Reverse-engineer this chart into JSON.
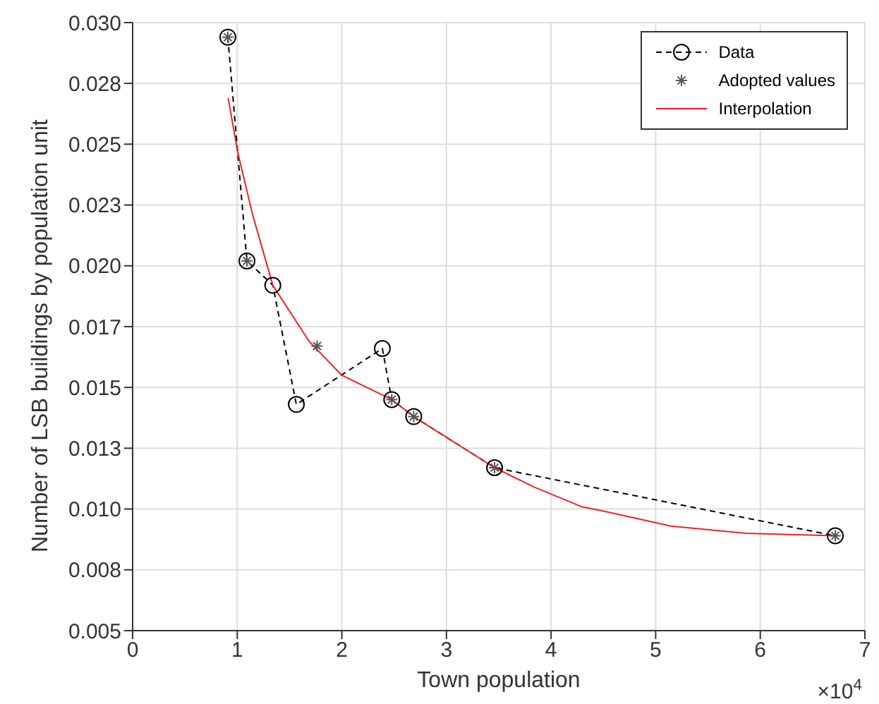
{
  "chart_data": {
    "type": "line",
    "xlabel": "Town population",
    "ylabel": "Number of LSB buildings by population unit",
    "annotations": [
      "×10$^{4}$"
    ],
    "xlim": [
      0,
      7
    ],
    "xticks": [
      0,
      1,
      2,
      3,
      4,
      5,
      6,
      7
    ],
    "ylim": [
      0.005,
      0.03
    ],
    "yticks": [
      {
        "value": 0.005,
        "label": "0.005"
      },
      {
        "value": 0.0075,
        "label": "0.008"
      },
      {
        "value": 0.01,
        "label": "0.010"
      },
      {
        "value": 0.0125,
        "label": "0.013"
      },
      {
        "value": 0.015,
        "label": "0.015"
      },
      {
        "value": 0.0175,
        "label": "0.017"
      },
      {
        "value": 0.02,
        "label": "0.020"
      },
      {
        "value": 0.0225,
        "label": "0.023"
      },
      {
        "value": 0.025,
        "label": "0.025"
      },
      {
        "value": 0.0275,
        "label": "0.028"
      },
      {
        "value": 0.03,
        "label": "0.030"
      }
    ],
    "grid": true,
    "legend": "top right",
    "series": [
      {
        "name": "Data",
        "color": "#000000",
        "marker": "circle",
        "line_style": "dashed",
        "x": [
          0.91,
          1.093,
          1.34,
          1.565,
          2.387,
          2.477,
          2.687,
          3.46,
          6.717
        ],
        "values": [
          0.0294,
          0.0202,
          0.0192,
          0.0143,
          0.0166,
          0.0145,
          0.0138,
          0.0117,
          0.0089
        ]
      },
      {
        "name": "Adopted values",
        "type": "scatter",
        "color": "#555555",
        "marker": "cross",
        "x": [
          0.91,
          1.093,
          1.763,
          2.477,
          2.687,
          3.46,
          6.717
        ],
        "values": [
          0.0294,
          0.0202,
          0.0167,
          0.0145,
          0.0138,
          0.0117,
          0.0089
        ]
      },
      {
        "name": "Interpolation",
        "color": "#e8262b",
        "marker": "none",
        "line_style": "solid",
        "x": [
          0.913,
          1.003,
          1.147,
          1.34,
          1.686,
          2.0,
          2.477,
          2.687,
          3.46,
          3.84,
          4.29,
          4.516,
          5.145,
          5.86,
          6.717
        ],
        "values": [
          0.0269,
          0.0247,
          0.0221,
          0.0192,
          0.0169,
          0.0155,
          0.0145,
          0.0138,
          0.0117,
          0.0109,
          0.0101,
          0.0099,
          0.0093,
          0.009,
          0.0089
        ]
      }
    ]
  }
}
